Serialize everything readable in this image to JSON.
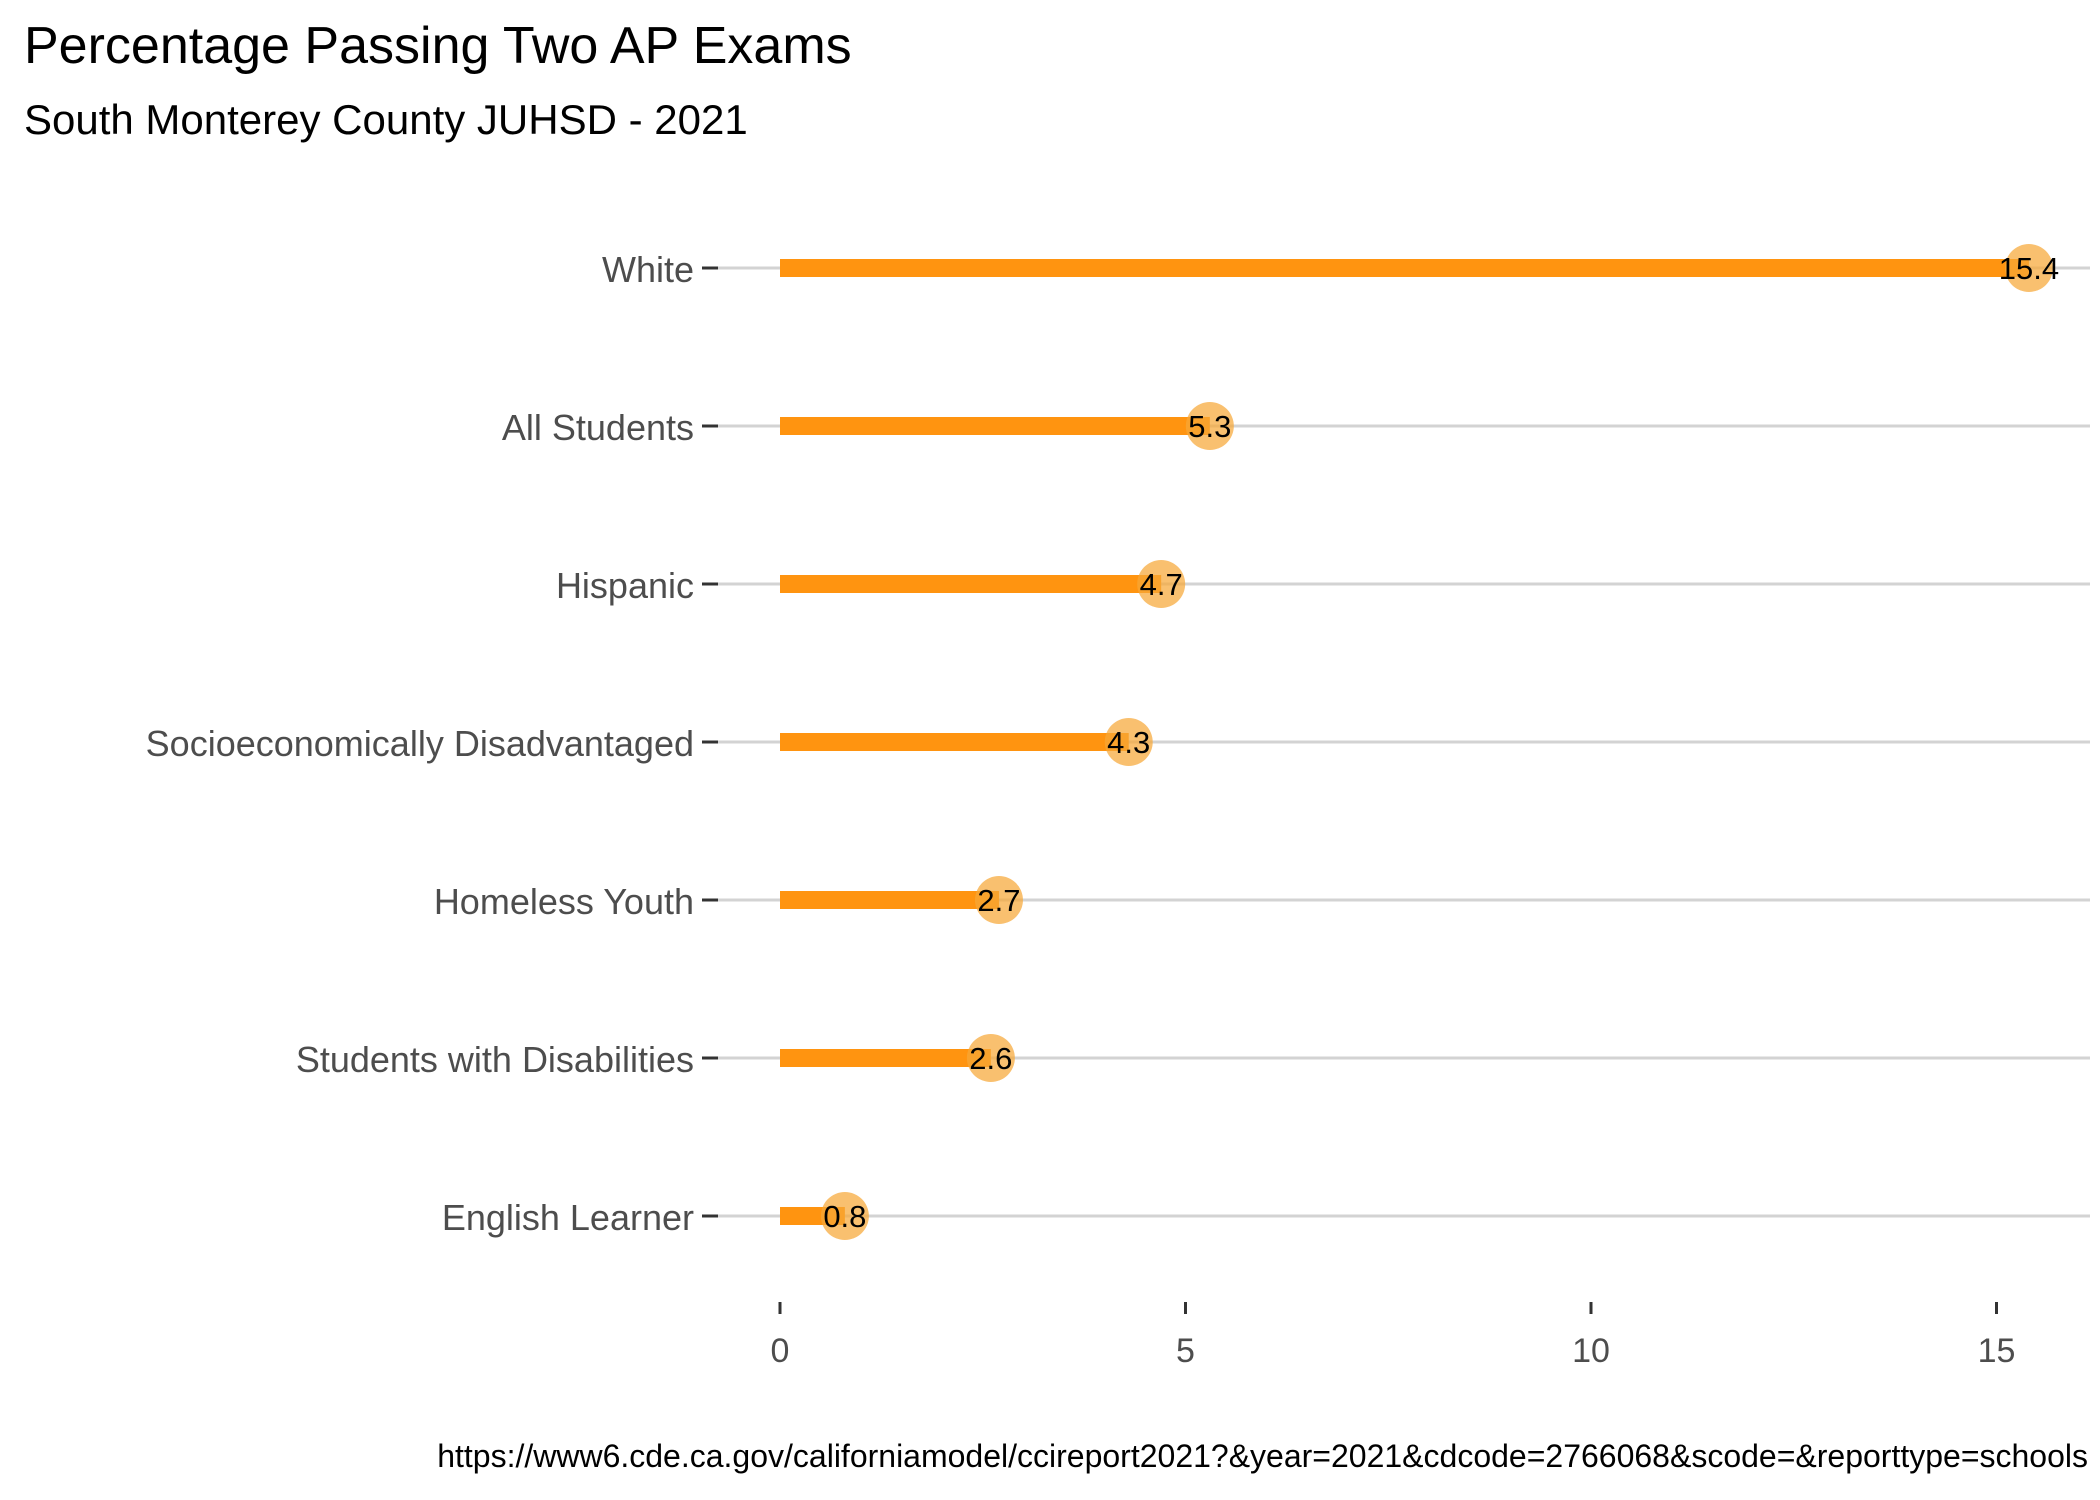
{
  "chart_data": {
    "type": "lollipop-bar",
    "title": "Percentage Passing Two AP Exams",
    "subtitle": "South Monterey County JUHSD - 2021",
    "caption": "https://www6.cde.ca.gov/californiamodel/ccireport2021?&year=2021&cdcode=2766068&scode=&reporttype=schools",
    "categories": [
      "White",
      "All Students",
      "Hispanic",
      "Socioeconomically Disadvantaged",
      "Homeless Youth",
      "Students with Disabilities",
      "English Learner"
    ],
    "values": [
      15.4,
      5.3,
      4.7,
      4.3,
      2.7,
      2.6,
      0.8
    ],
    "value_labels": [
      "15.4",
      "5.3",
      "4.7",
      "4.3",
      "2.7",
      "2.6",
      "0.8"
    ],
    "x_ticks": [
      0,
      5,
      10,
      15
    ],
    "x_tick_labels": [
      "0",
      "5",
      "10",
      "15"
    ],
    "xlim": [
      0,
      16
    ],
    "grid": "horizontal gridlines per category",
    "colors": {
      "bar": "#FF9410",
      "point": "#F6A837",
      "grid": "#D3D3D3",
      "axis_text": "#4D4D4D"
    }
  }
}
